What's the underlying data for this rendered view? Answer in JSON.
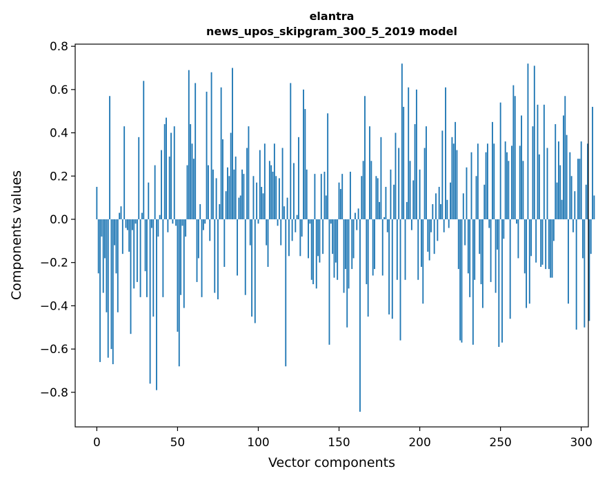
{
  "chart_data": {
    "type": "bar",
    "title": "elantra",
    "subtitle": "news_upos_skipgram_300_5_2019 model",
    "xlabel": "Vector components",
    "ylabel": "Components values",
    "xlim": [
      -13.4,
      304.4
    ],
    "ylim": [
      -0.96,
      0.81
    ],
    "xticks": [
      0,
      50,
      100,
      150,
      200,
      250,
      300
    ],
    "xtick_labels": [
      "0",
      "50",
      "100",
      "150",
      "200",
      "250",
      "300"
    ],
    "yticks": [
      -0.8,
      -0.6,
      -0.4,
      -0.2,
      0.0,
      0.2,
      0.4,
      0.6,
      0.8
    ],
    "ytick_labels": [
      "−0.8",
      "−0.6",
      "−0.4",
      "−0.2",
      "0.0",
      "0.2",
      "0.4",
      "0.6",
      "0.8"
    ],
    "grid": false,
    "bar_color": "#1f77b4",
    "values": [
      0.15,
      -0.25,
      -0.66,
      -0.08,
      -0.34,
      -0.18,
      -0.43,
      -0.64,
      0.57,
      -0.6,
      -0.67,
      -0.12,
      -0.25,
      -0.43,
      0.03,
      0.06,
      -0.16,
      0.43,
      -0.04,
      -0.05,
      -0.15,
      -0.53,
      -0.05,
      -0.32,
      -0.02,
      -0.29,
      0.38,
      -0.36,
      0.03,
      0.64,
      -0.24,
      -0.36,
      0.17,
      -0.76,
      -0.04,
      -0.45,
      0.25,
      -0.79,
      -0.08,
      0.02,
      0.32,
      -0.36,
      0.44,
      0.47,
      -0.06,
      0.29,
      0.4,
      -0.02,
      0.43,
      -0.03,
      -0.52,
      -0.68,
      -0.35,
      -0.03,
      -0.41,
      -0.08,
      0.25,
      0.69,
      0.44,
      0.35,
      0.28,
      0.63,
      -0.29,
      -0.18,
      0.07,
      -0.36,
      -0.05,
      -0.02,
      0.59,
      0.25,
      -0.1,
      0.68,
      0.23,
      -0.34,
      0.19,
      -0.37,
      0.07,
      0.61,
      0.37,
      -0.22,
      0.13,
      0.24,
      0.2,
      0.4,
      0.7,
      0.23,
      0.29,
      -0.26,
      0.1,
      0.11,
      0.23,
      0.21,
      -0.35,
      0.33,
      0.43,
      -0.12,
      -0.45,
      0.2,
      -0.48,
      0.17,
      -0.02,
      0.32,
      0.15,
      0.12,
      0.35,
      -0.12,
      -0.22,
      0.27,
      0.25,
      0.22,
      0.35,
      0.2,
      -0.03,
      0.19,
      -0.12,
      0.33,
      0.06,
      -0.68,
      0.1,
      -0.17,
      0.63,
      -0.1,
      0.26,
      -0.06,
      0.02,
      0.38,
      -0.17,
      -0.08,
      0.6,
      0.51,
      0.23,
      -0.18,
      -0.02,
      -0.28,
      -0.3,
      0.21,
      -0.32,
      -0.17,
      -0.2,
      0.21,
      -0.16,
      0.22,
      0.11,
      0.49,
      -0.58,
      -0.02,
      -0.16,
      -0.27,
      -0.2,
      -0.28,
      0.17,
      0.14,
      0.21,
      -0.34,
      -0.23,
      -0.5,
      -0.32,
      0.22,
      -0.23,
      -0.18,
      0.03,
      -0.05,
      0.05,
      -0.89,
      0.2,
      0.27,
      0.57,
      -0.3,
      -0.45,
      0.43,
      0.27,
      -0.26,
      -0.23,
      0.2,
      0.19,
      0.08,
      0.38,
      -0.26,
      0.01,
      0.15,
      -0.06,
      -0.44,
      0.23,
      -0.46,
      0.16,
      0.4,
      -0.28,
      0.33,
      -0.56,
      0.72,
      0.52,
      -0.28,
      0.08,
      0.61,
      0.27,
      -0.05,
      0.18,
      0.44,
      0.6,
      -0.28,
      0.23,
      -0.22,
      -0.39,
      0.33,
      0.43,
      -0.15,
      -0.19,
      -0.06,
      0.07,
      -0.16,
      0.12,
      -0.1,
      0.15,
      0.07,
      0.41,
      -0.06,
      0.61,
      0.09,
      -0.04,
      0.17,
      0.38,
      0.35,
      0.45,
      0.32,
      -0.23,
      -0.56,
      -0.57,
      0.12,
      -0.12,
      0.24,
      -0.25,
      -0.36,
      0.31,
      -0.58,
      -0.28,
      0.2,
      0.35,
      -0.16,
      -0.3,
      -0.41,
      0.16,
      0.31,
      0.35,
      -0.04,
      -0.29,
      0.45,
      0.35,
      -0.34,
      -0.14,
      -0.59,
      0.54,
      -0.57,
      -0.09,
      0.36,
      0.31,
      0.27,
      -0.46,
      0.34,
      0.62,
      0.57,
      -0.02,
      -0.18,
      0.34,
      0.48,
      0.27,
      -0.25,
      -0.41,
      0.72,
      -0.39,
      -0.17,
      0.43,
      0.71,
      -0.2,
      0.53,
      0.3,
      -0.22,
      -0.21,
      0.53,
      -0.23,
      0.33,
      -0.23,
      -0.27,
      -0.27,
      -0.1,
      0.44,
      0.17,
      0.36,
      0.25,
      0.09,
      0.48,
      0.57,
      0.39,
      -0.39,
      0.31,
      0.2,
      -0.06,
      0.13,
      -0.51,
      0.28,
      0.28,
      0.36,
      -0.18,
      -0.5,
      0.16,
      0.35,
      -0.47,
      -0.16,
      0.52,
      0.11
    ]
  }
}
